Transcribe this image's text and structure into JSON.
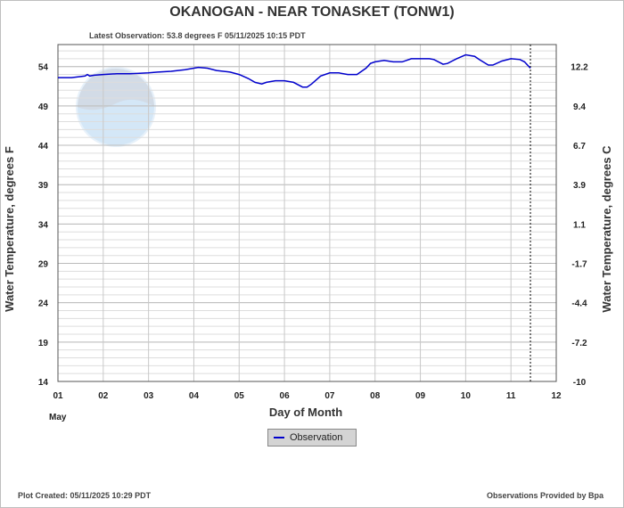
{
  "chart_data": {
    "type": "line",
    "title": "OKANOGAN - NEAR TONASKET  (TONW1)",
    "subtitle": "Latest Observation: 53.8 degrees F  05/11/2025 10:15 PDT",
    "xlabel": "Day of Month",
    "month_label": "May",
    "ylabel_left": "Water Temperature, degrees F",
    "ylabel_right": "Water Temperature, degrees C",
    "x_ticks": [
      "01",
      "02",
      "03",
      "04",
      "05",
      "06",
      "07",
      "08",
      "09",
      "10",
      "11",
      "12"
    ],
    "y_ticks_left": [
      "14",
      "19",
      "24",
      "29",
      "34",
      "39",
      "44",
      "49",
      "54"
    ],
    "y_ticks_right": [
      "-10",
      "-7.2",
      "-4.4",
      "-1.7",
      "1.1",
      "3.9",
      "6.7",
      "9.4",
      "12.2"
    ],
    "xlim": [
      1,
      12
    ],
    "ylim": [
      14,
      56.8
    ],
    "grid": true,
    "line_color": "#0000cc",
    "now_marker_day": 11.43,
    "series": [
      {
        "name": "Observation",
        "x": [
          1.0,
          1.3,
          1.6,
          1.65,
          1.7,
          1.8,
          2.0,
          2.3,
          2.6,
          3.0,
          3.2,
          3.5,
          3.8,
          4.0,
          4.1,
          4.3,
          4.5,
          4.8,
          5.0,
          5.2,
          5.35,
          5.5,
          5.6,
          5.8,
          6.0,
          6.2,
          6.4,
          6.5,
          6.6,
          6.8,
          7.0,
          7.2,
          7.4,
          7.6,
          7.8,
          7.9,
          8.0,
          8.2,
          8.4,
          8.6,
          8.8,
          8.9,
          9.0,
          9.2,
          9.3,
          9.5,
          9.6,
          9.8,
          10.0,
          10.2,
          10.3,
          10.5,
          10.6,
          10.8,
          11.0,
          11.2,
          11.3,
          11.43
        ],
        "y": [
          52.6,
          52.6,
          52.8,
          53.0,
          52.8,
          52.9,
          53.0,
          53.1,
          53.1,
          53.2,
          53.3,
          53.4,
          53.6,
          53.8,
          53.9,
          53.8,
          53.5,
          53.3,
          53.0,
          52.5,
          52.0,
          51.8,
          52.0,
          52.2,
          52.2,
          52.0,
          51.4,
          51.4,
          51.8,
          52.8,
          53.2,
          53.2,
          53.0,
          53.0,
          53.8,
          54.4,
          54.6,
          54.8,
          54.6,
          54.6,
          55.0,
          55.0,
          55.0,
          55.0,
          54.9,
          54.3,
          54.4,
          55.0,
          55.5,
          55.3,
          54.9,
          54.2,
          54.2,
          54.7,
          55.0,
          54.9,
          54.6,
          53.8
        ]
      }
    ]
  },
  "watermark": "NOAA",
  "legend_label": "Observation",
  "footer": {
    "left": "Plot Created:  05/11/2025 10:29 PDT",
    "right": "Observations Provided by Bpa"
  }
}
